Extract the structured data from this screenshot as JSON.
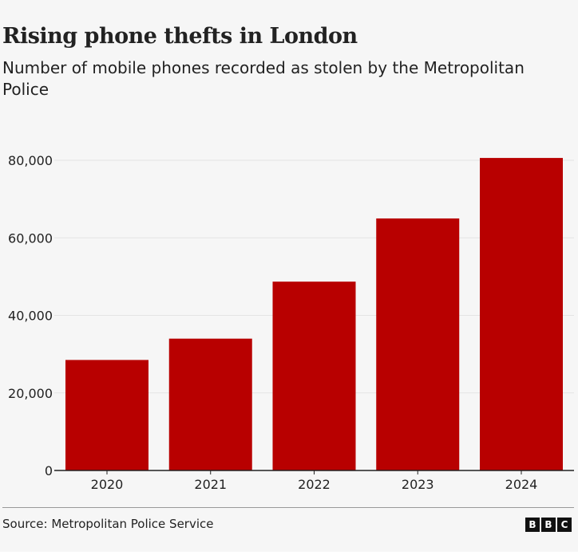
{
  "header": {
    "title": "Rising phone thefts in London",
    "subtitle": "Number of mobile phones recorded as stolen by the Metropolitan Police"
  },
  "footer": {
    "source": "Source: Metropolitan Police Service",
    "logo_letters": [
      "B",
      "B",
      "C"
    ]
  },
  "chart_data": {
    "type": "bar",
    "title": "Rising phone thefts in London",
    "subtitle": "Number of mobile phones recorded as stolen by the Metropolitan Police",
    "categories": [
      "2020",
      "2021",
      "2022",
      "2023",
      "2024"
    ],
    "values": [
      28500,
      34000,
      48700,
      65000,
      80600
    ],
    "ylim": [
      0,
      80000
    ],
    "yticks": [
      0,
      20000,
      40000,
      60000,
      80000
    ],
    "ytick_labels": [
      "0",
      "20,000",
      "40,000",
      "60,000",
      "80,000"
    ],
    "grid": true,
    "xlabel": "",
    "ylabel": "",
    "colors": {
      "bar": "#b80000",
      "grid": "#e4e4e4",
      "axis": "#222222",
      "text": "#222222"
    }
  }
}
